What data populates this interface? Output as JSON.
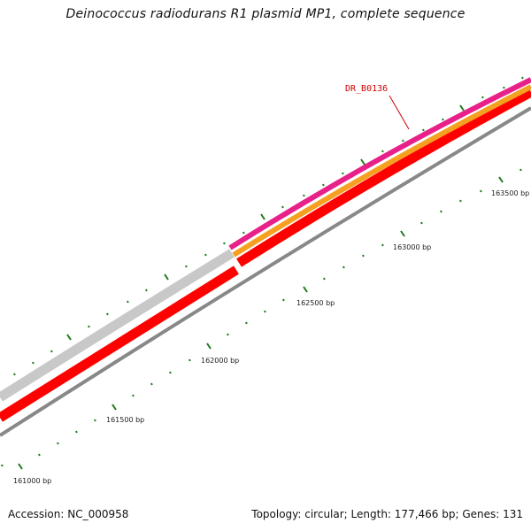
{
  "title": "Deinococcus radiodurans R1 plasmid MP1, complete sequence",
  "footer": {
    "accession": "Accession: NC_000958",
    "summary": "Topology: circular; Length: 177,466 bp; Genes: 131"
  },
  "map": {
    "tick_labels": [
      "161000 bp",
      "161500 bp",
      "162000 bp",
      "162500 bp",
      "163000 bp",
      "163500 bp"
    ],
    "gene_labels": [
      {
        "text": "DR_B0136",
        "color": "#cc0000"
      }
    ],
    "track_colors": {
      "grey": "#c8c8c8",
      "magenta": "#e8208a",
      "orange": "#f5a020",
      "red": "#ff0000",
      "axis": "#888888",
      "tick": "#1f7a1f",
      "leader": "#cc0000"
    }
  }
}
